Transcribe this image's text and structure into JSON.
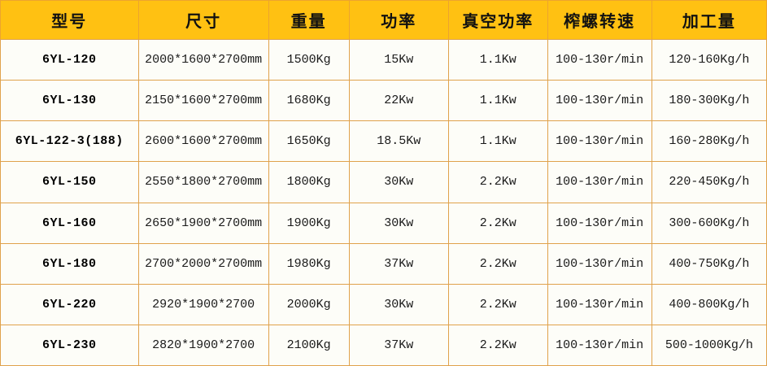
{
  "chart_data": {
    "type": "table",
    "title": "",
    "columns": [
      "型号",
      "尺寸",
      "重量",
      "功率",
      "真空功率",
      "榨螺转速",
      "加工量"
    ],
    "rows": [
      [
        "6YL-120",
        "2000*1600*2700mm",
        "1500Kg",
        "15Kw",
        "1.1Kw",
        "100-130r/min",
        "120-160Kg/h"
      ],
      [
        "6YL-130",
        "2150*1600*2700mm",
        "1680Kg",
        "22Kw",
        "1.1Kw",
        "100-130r/min",
        "180-300Kg/h"
      ],
      [
        "6YL-122-3(188)",
        "2600*1600*2700mm",
        "1650Kg",
        "18.5Kw",
        "1.1Kw",
        "100-130r/min",
        "160-280Kg/h"
      ],
      [
        "6YL-150",
        "2550*1800*2700mm",
        "1800Kg",
        "30Kw",
        "2.2Kw",
        "100-130r/min",
        "220-450Kg/h"
      ],
      [
        "6YL-160",
        "2650*1900*2700mm",
        "1900Kg",
        "30Kw",
        "2.2Kw",
        "100-130r/min",
        "300-600Kg/h"
      ],
      [
        "6YL-180",
        "2700*2000*2700mm",
        "1980Kg",
        "37Kw",
        "2.2Kw",
        "100-130r/min",
        "400-750Kg/h"
      ],
      [
        "6YL-220",
        "2920*1900*2700",
        "2000Kg",
        "30Kw",
        "2.2Kw",
        "100-130r/min",
        "400-800Kg/h"
      ],
      [
        "6YL-230",
        "2820*1900*2700",
        "2100Kg",
        "37Kw",
        "2.2Kw",
        "100-130r/min",
        "500-1000Kg/h"
      ]
    ]
  },
  "colors": {
    "header_background": "#ffc112",
    "grid_border": "#e0a24c",
    "row_background": "#fdfdf8",
    "text": "#1a1a1a"
  }
}
